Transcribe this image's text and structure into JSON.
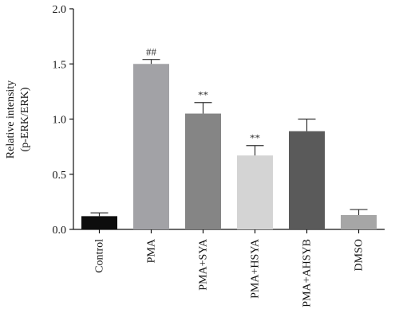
{
  "chart_data": {
    "type": "bar",
    "categories": [
      "Control",
      "PMA",
      "PMA+SYA",
      "PMA+HSYA",
      "PMA+AHSYB",
      "DMSO"
    ],
    "values": [
      0.12,
      1.5,
      1.05,
      0.67,
      0.89,
      0.13
    ],
    "errors": [
      0.03,
      0.04,
      0.1,
      0.09,
      0.11,
      0.05
    ],
    "bar_colors": [
      "#0d0d0d",
      "#a2a2a6",
      "#858585",
      "#d4d4d4",
      "#5a5a5a",
      "#a6a6a6"
    ],
    "annotations": [
      "",
      "##",
      "**",
      "**",
      "",
      ""
    ],
    "ylabel_line1": "Relative intensity",
    "ylabel_line2": "(p-ERK/ERK)",
    "ylim": [
      0,
      2.0
    ],
    "yticks": [
      "0.0",
      "0.5",
      "1.0",
      "1.5",
      "2.0"
    ],
    "ytick_values": [
      0,
      0.5,
      1.0,
      1.5,
      2.0
    ]
  }
}
